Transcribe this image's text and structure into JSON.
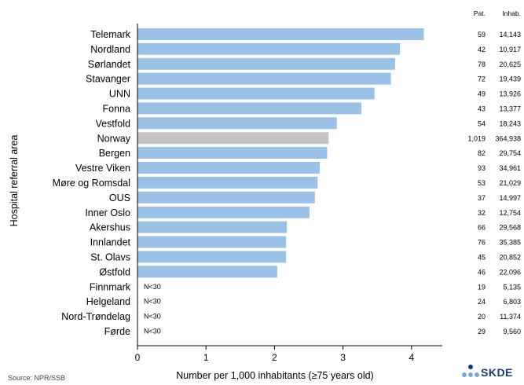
{
  "chart_data": {
    "type": "bar",
    "orientation": "horizontal",
    "xlabel": "Number per 1,000 inhabitants (≥75 years old)",
    "ylabel": "Hospital referral area",
    "xlim": [
      0,
      5
    ],
    "xticks": [
      "0",
      "1",
      "2",
      "3",
      "4"
    ],
    "table_headers": [
      "Pat.",
      "Inhab."
    ],
    "categories": [
      "Telemark",
      "Nordland",
      "Sørlandet",
      "Stavanger",
      "UNN",
      "Fonna",
      "Vestfold",
      "Norway",
      "Bergen",
      "Vestre Viken",
      "Møre og Romsdal",
      "OUS",
      "Inner Oslo",
      "Akershus",
      "Innlandet",
      "St. Olavs",
      "Østfold",
      "Finnmark",
      "Helgeland",
      "Nord-Trøndelag",
      "Førde"
    ],
    "values": [
      4.18,
      3.83,
      3.76,
      3.7,
      3.46,
      3.27,
      2.91,
      2.79,
      2.77,
      2.66,
      2.63,
      2.59,
      2.51,
      2.18,
      2.17,
      2.17,
      2.04,
      null,
      null,
      null,
      null
    ],
    "value_labels": [
      "",
      "",
      "",
      "",
      "",
      "",
      "",
      "",
      "",
      "",
      "",
      "",
      "",
      "",
      "",
      "",
      "",
      "N<30",
      "N<30",
      "N<30",
      "N<30"
    ],
    "patients": [
      "59",
      "42",
      "78",
      "72",
      "49",
      "43",
      "54",
      "1,019",
      "82",
      "93",
      "53",
      "37",
      "32",
      "66",
      "76",
      "45",
      "46",
      "19",
      "24",
      "20",
      "29"
    ],
    "inhabitants": [
      "14,143",
      "10,917",
      "20,625",
      "19,439",
      "13,926",
      "13,377",
      "18,243",
      "364,938",
      "29,754",
      "34,961",
      "21,029",
      "14,997",
      "12,754",
      "29,568",
      "35,385",
      "20,852",
      "22,096",
      "5,135",
      "6,803",
      "11,374",
      "9,560"
    ],
    "highlight": "Norway",
    "colors": {
      "bar": "#9cc1e6",
      "highlight": "#c4c4c4"
    },
    "grid": false
  },
  "footer": {
    "source": "Source: NPR/SSB",
    "logo_text": "SKDE",
    "logo_color": "#1a3a6b"
  }
}
